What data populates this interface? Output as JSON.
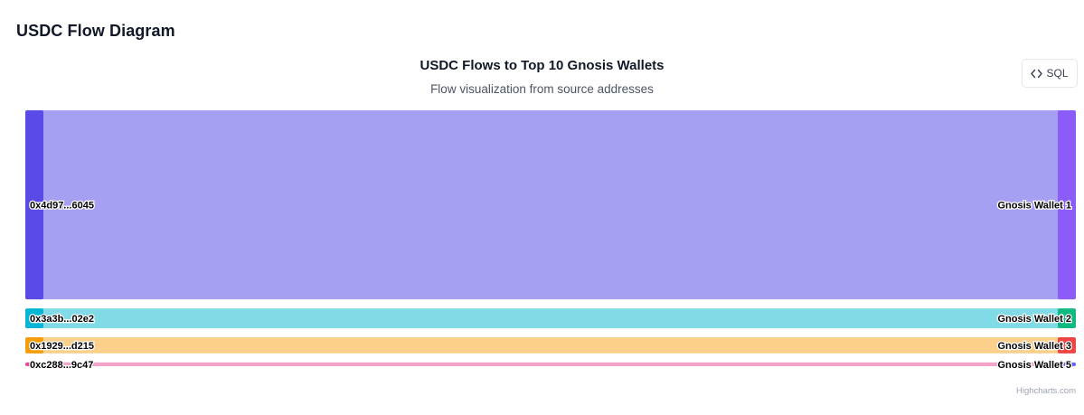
{
  "page": {
    "title": "USDC Flow Diagram",
    "sql_button_label": "SQL",
    "credits": "Highcharts.com"
  },
  "chart_data": {
    "type": "sankey",
    "title": "USDC Flows to Top 10 Gnosis Wallets",
    "subtitle": "Flow visualization from source addresses",
    "flows": [
      {
        "from": "0x4d97...6045",
        "to": "Gnosis Wallet 1",
        "value": 100,
        "link_color": "#a5a0f1",
        "source_color": "#5b4be6",
        "target_color": "#8b5cf6"
      },
      {
        "from": "0x3a3b...02e2",
        "to": "Gnosis Wallet 2",
        "value": 10.5,
        "link_color": "#80dbe6",
        "source_color": "#06b6d4",
        "target_color": "#10b981"
      },
      {
        "from": "0x1929...d215",
        "to": "Gnosis Wallet 3",
        "value": 8.5,
        "link_color": "#fbd08b",
        "source_color": "#f59e0b",
        "target_color": "#ef4444"
      },
      {
        "from": "0xc288...9c47",
        "to": "Gnosis Wallet 5",
        "value": 2,
        "link_color": "#f5a3c8",
        "source_color": "#ec4899",
        "target_color": "#6366f1"
      }
    ]
  }
}
